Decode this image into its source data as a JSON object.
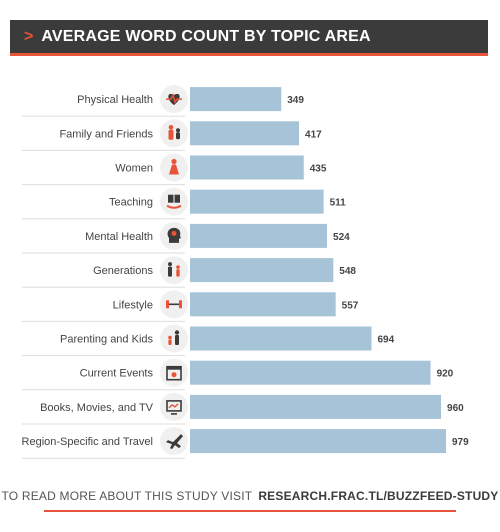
{
  "header": {
    "title": "AVERAGE WORD COUNT BY TOPIC AREA"
  },
  "footer": {
    "text": "TO READ MORE ABOUT THIS STUDY VISIT",
    "url": "RESEARCH.FRAC.TL/BUZZFEED-STUDY"
  },
  "colors": {
    "bar": "#a6c3d7",
    "accent": "#e8543a",
    "header_bg": "#3b3b3b",
    "icon_circle": "#f0f0f0",
    "divider": "#dddddd"
  },
  "chart_data": {
    "type": "bar",
    "orientation": "horizontal",
    "title": "AVERAGE WORD COUNT BY TOPIC AREA",
    "categories": [
      "Physical Health",
      "Family and Friends",
      "Women",
      "Teaching",
      "Mental Health",
      "Generations",
      "Lifestyle",
      "Parenting and Kids",
      "Current Events",
      "Books, Movies, and TV",
      "Region-Specific and Travel"
    ],
    "values": [
      349,
      417,
      435,
      511,
      524,
      548,
      557,
      694,
      920,
      960,
      979
    ],
    "icons": [
      "heartbeat-icon",
      "family-icon",
      "woman-icon",
      "teaching-icon",
      "head-icon",
      "generations-icon",
      "dumbbell-icon",
      "parent-child-icon",
      "calendar-icon",
      "monitor-icon",
      "airplane-icon"
    ],
    "data_labels": true,
    "grid": false
  }
}
